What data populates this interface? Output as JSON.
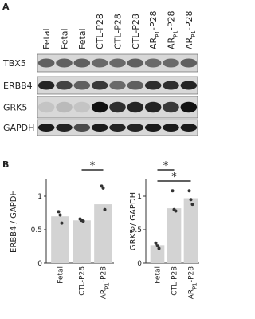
{
  "panel_labels": [
    "A",
    "B"
  ],
  "blot": {
    "lanes": [
      "Fetal",
      "Fetal",
      "Fetal",
      "CTL-P28",
      "CTL-P28",
      "CTL-P28",
      [
        "AR",
        "P1",
        "-P28"
      ],
      [
        "AR",
        "P1",
        "-P28"
      ],
      [
        "AR",
        "P1",
        "-P28"
      ]
    ],
    "proteins": [
      "TBX5",
      "ERBB4",
      "GRK5",
      "GAPDH"
    ]
  },
  "chart_data": [
    {
      "type": "bar",
      "ylabel": "ERBB4 / GAPDH",
      "categories": [
        "Fetal",
        "CTL-P28",
        [
          "AR",
          "P1",
          "-P28"
        ]
      ],
      "values": [
        0.7,
        0.64,
        0.88
      ],
      "color": "#d3d3d3",
      "points": [
        [
          0.77,
          0.72,
          0.6
        ],
        [
          0.66,
          0.64,
          0.63
        ],
        [
          1.15,
          1.12,
          0.8
        ]
      ],
      "point_color": "#333333",
      "ylim": [
        0,
        1.25
      ],
      "yticks": [
        0,
        0.5,
        1
      ],
      "significance": [
        {
          "from": 1,
          "to": 2,
          "label": "*"
        }
      ]
    },
    {
      "type": "bar",
      "ylabel": "GRK5 / GAPDH",
      "categories": [
        "Fetal",
        "CTL-P28",
        [
          "AR",
          "P1",
          "-P28"
        ]
      ],
      "values": [
        0.27,
        0.82,
        0.97
      ],
      "color": "#d3d3d3",
      "points": [
        [
          0.3,
          0.26,
          0.22
        ],
        [
          1.08,
          0.8,
          0.78
        ],
        [
          1.08,
          0.95,
          0.88
        ]
      ],
      "point_color": "#333333",
      "ylim": [
        0,
        1.25
      ],
      "yticks": [
        0,
        0.5,
        1
      ],
      "significance": [
        {
          "from": 0,
          "to": 1,
          "label": "*"
        },
        {
          "from": 0,
          "to": 2,
          "label": "*"
        }
      ]
    }
  ]
}
